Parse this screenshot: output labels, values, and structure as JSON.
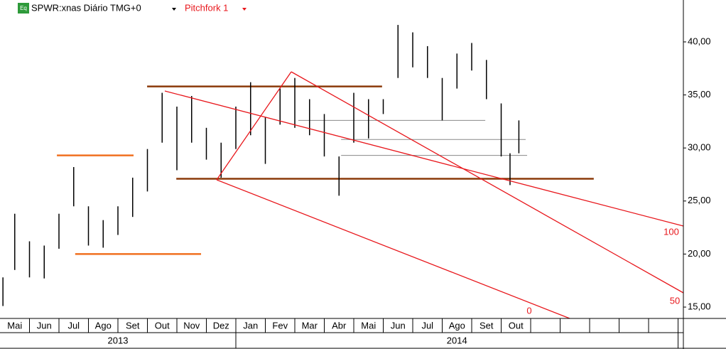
{
  "chart_data": {
    "type": "range-bar",
    "title": "SPWR:xnas Diário TMG+0",
    "icon_label": "Eq",
    "tool_label": "Pitchfork 1",
    "categories": [
      "Mai",
      "Jun",
      "Jul",
      "Ago",
      "Set",
      "Out",
      "Nov",
      "Dez",
      "Jan",
      "Fev",
      "Mar",
      "Abr",
      "Mai",
      "Jun",
      "Jul",
      "Ago",
      "Set",
      "Out",
      null,
      null,
      null,
      null,
      null
    ],
    "years": [
      "2013",
      "2014"
    ],
    "xlim": [
      0,
      23.18
    ],
    "ylim": [
      13.93,
      43.95
    ],
    "yticks": [
      {
        "value": 15,
        "label": "15,00"
      },
      {
        "value": 20,
        "label": "20,00"
      },
      {
        "value": 25,
        "label": "25,00"
      },
      {
        "value": 30,
        "label": "30,00"
      },
      {
        "value": 35,
        "label": "35,00"
      },
      {
        "value": 40,
        "label": "40,00"
      }
    ],
    "color": "#000000",
    "x": [
      0.1,
      0.5,
      1.0,
      1.5,
      2.0,
      2.5,
      3.0,
      3.5,
      4.0,
      4.5,
      5.0,
      5.5,
      6.0,
      6.5,
      7.0,
      7.5,
      8.0,
      8.5,
      9.0,
      9.5,
      10.0,
      10.5,
      11.0,
      11.5,
      12.0,
      12.5,
      13.0,
      13.5,
      14.0,
      14.5,
      15.0,
      15.5,
      16.0,
      16.5,
      17.0,
      17.3,
      17.6
    ],
    "high": [
      17.8,
      23.8,
      21.2,
      20.8,
      23.8,
      28.2,
      24.5,
      23.2,
      24.5,
      27.2,
      29.9,
      35.2,
      33.9,
      34.9,
      31.9,
      30.5,
      33.9,
      36.2,
      32.9,
      35.6,
      36.6,
      34.6,
      33.2,
      29.2,
      35.2,
      34.6,
      34.6,
      41.6,
      40.9,
      39.6,
      36.6,
      38.9,
      39.9,
      38.3,
      34.2,
      29.5,
      32.6
    ],
    "low": [
      15.1,
      18.5,
      17.8,
      17.7,
      20.5,
      24.5,
      20.8,
      20.6,
      21.8,
      23.5,
      25.9,
      30.5,
      27.9,
      30.5,
      28.9,
      27.2,
      29.9,
      31.2,
      28.5,
      32.2,
      31.9,
      31.2,
      29.2,
      25.5,
      30.5,
      30.9,
      33.2,
      36.6,
      37.6,
      36.6,
      32.6,
      35.6,
      37.3,
      34.6,
      29.2,
      26.5,
      29.5
    ],
    "hlines": [
      {
        "value": 29.3,
        "x": [
          1.93,
          4.53
        ],
        "color": "#f07020"
      },
      {
        "value": 20.0,
        "x": [
          2.55,
          6.82
        ],
        "color": "#f07020"
      },
      {
        "value": 35.8,
        "x": [
          4.99,
          12.96
        ],
        "color": "#8b3a0a"
      },
      {
        "value": 27.1,
        "x": [
          5.98,
          20.14
        ],
        "color": "#8b3a0a"
      },
      {
        "value": 32.6,
        "x": [
          10.12,
          16.46
        ],
        "color": "#888888"
      },
      {
        "value": 30.8,
        "x": [
          11.57,
          17.83
        ],
        "color": "#888888"
      },
      {
        "value": 29.3,
        "x": [
          11.57,
          17.88
        ],
        "color": "#888888"
      }
    ],
    "pitchfork_levels": [
      100,
      50,
      0
    ],
    "pitchfork_color": "#e8161b"
  }
}
